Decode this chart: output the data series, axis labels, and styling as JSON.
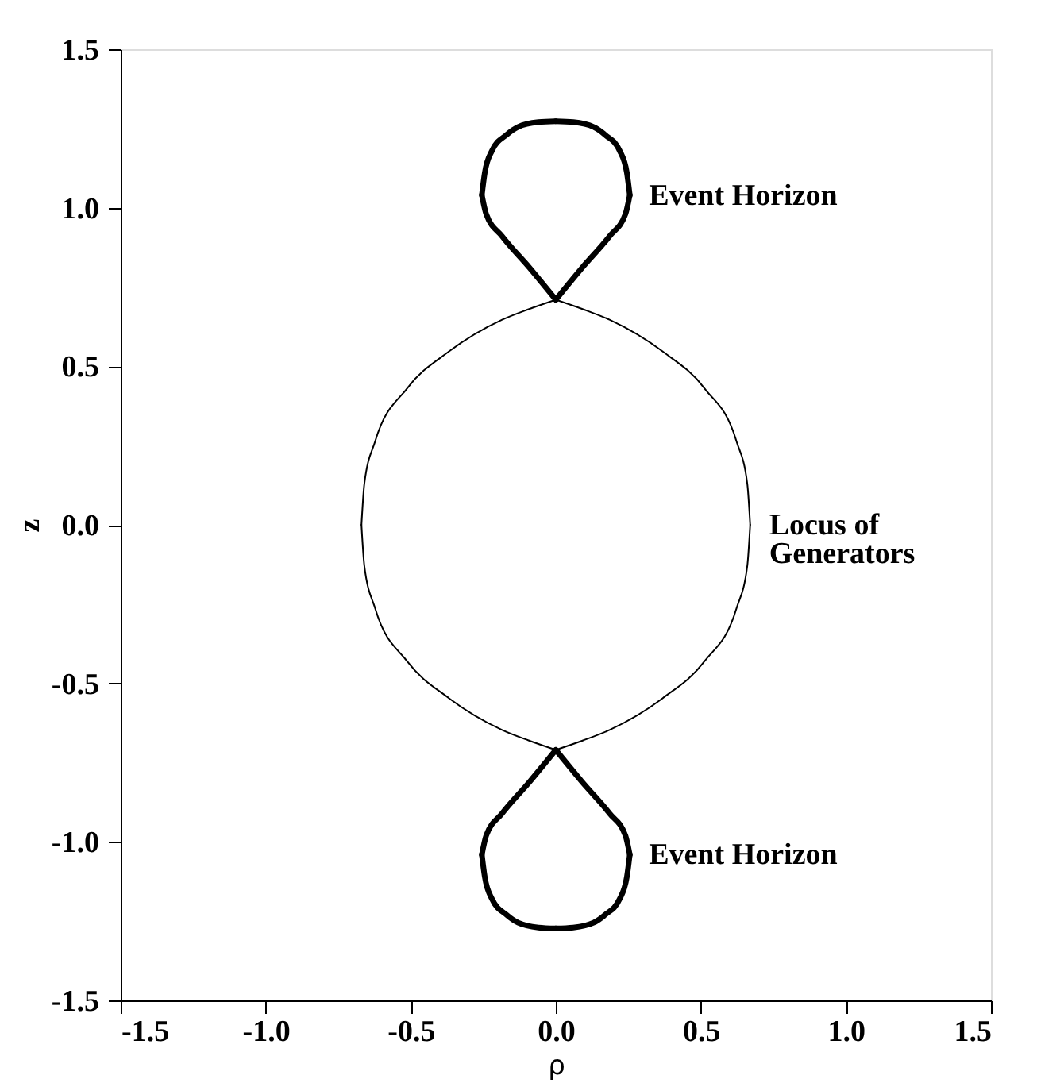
{
  "chart_data": {
    "type": "line",
    "xlabel": "ρ",
    "ylabel": "z",
    "series": [
      {
        "color": "#000000",
        "x": [
          0,
          0.09,
          0.185,
          0.24,
          0.255
        ],
        "values": [
          0.71,
          0.81,
          0.91,
          0.98,
          1.04
        ]
      },
      {
        "color": "#000000",
        "x": [
          0.255,
          0.245,
          0.22,
          0.17,
          0.13,
          0.06,
          0
        ],
        "values": [
          1.04,
          1.11,
          1.18,
          1.23,
          1.255,
          1.27,
          1.273
        ]
      },
      {
        "color": "#000000",
        "x": [
          0,
          -0.06,
          -0.13,
          -0.17,
          -0.22,
          -0.245,
          -0.255
        ],
        "values": [
          1.273,
          1.27,
          1.255,
          1.23,
          1.18,
          1.11,
          1.04
        ]
      },
      {
        "color": "#000000",
        "x": [
          -0.255,
          -0.24,
          -0.185,
          -0.09,
          0
        ],
        "values": [
          1.04,
          0.98,
          0.91,
          0.81,
          0.71
        ]
      },
      {
        "color": "#000000",
        "x": [
          0,
          0.09,
          0.185,
          0.24,
          0.255
        ],
        "values": [
          -0.71,
          -0.81,
          -0.91,
          -0.98,
          -1.04
        ]
      },
      {
        "color": "#000000",
        "x": [
          0.255,
          0.245,
          0.22,
          0.17,
          0.13,
          0.06,
          0
        ],
        "values": [
          -1.04,
          -1.11,
          -1.18,
          -1.23,
          -1.255,
          -1.27,
          -1.273
        ]
      },
      {
        "color": "#000000",
        "x": [
          0,
          -0.06,
          -0.13,
          -0.17,
          -0.22,
          -0.245,
          -0.255
        ],
        "values": [
          -1.273,
          -1.27,
          -1.255,
          -1.23,
          -1.18,
          -1.11,
          -1.04
        ]
      },
      {
        "color": "#000000",
        "x": [
          -0.255,
          -0.24,
          -0.185,
          -0.09,
          0
        ],
        "values": [
          -1.04,
          -0.98,
          -0.91,
          -0.81,
          -0.71
        ]
      },
      {
        "color": "#000000",
        "x": [
          0,
          0.094,
          0.185,
          0.368,
          0.513,
          0.623,
          0.66,
          0.67
        ],
        "values": [
          0.71,
          0.68,
          0.647,
          0.547,
          0.43,
          0.263,
          0.13,
          0
        ]
      },
      {
        "color": "#000000",
        "x": [
          0.67,
          0.66,
          0.623,
          0.513,
          0.368,
          0.185,
          0.094,
          0
        ],
        "values": [
          0,
          -0.13,
          -0.263,
          -0.43,
          -0.547,
          -0.647,
          -0.68,
          -0.71
        ]
      },
      {
        "color": "#000000",
        "x": [
          0,
          -0.094,
          -0.185,
          -0.368,
          -0.513,
          -0.623,
          -0.66,
          -0.67
        ],
        "values": [
          -0.71,
          -0.68,
          -0.647,
          -0.547,
          -0.43,
          -0.263,
          -0.13,
          0
        ]
      },
      {
        "color": "#000000",
        "x": [
          -0.67,
          -0.66,
          -0.623,
          -0.513,
          -0.368,
          -0.185,
          -0.094,
          0
        ],
        "values": [
          0,
          0.13,
          0.263,
          0.43,
          0.547,
          0.647,
          0.68,
          0.71
        ]
      }
    ],
    "xlim": [
      -1.5,
      1.5
    ],
    "ylim": [
      -1.5,
      1.5
    ],
    "xticks": [
      -1.5,
      {
        "value": -1,
        "label": "-1.0"
      },
      -0.5,
      {
        "value": 0,
        "label": "0.0"
      },
      0.5,
      {
        "value": 1,
        "label": "1.0"
      },
      1.5
    ],
    "yticks": [
      -1.5,
      {
        "value": -1,
        "label": "-1.0"
      },
      -0.5,
      {
        "value": 0,
        "label": "0.0"
      },
      0.5,
      {
        "value": 1,
        "label": "1.0"
      },
      1.5
    ],
    "grid": false,
    "legend": false,
    "marker": "none",
    "line_style": "solid",
    "annotations": [
      "Event Horizon",
      "Locus of\nGenerators",
      "Event Horizon"
    ]
  }
}
